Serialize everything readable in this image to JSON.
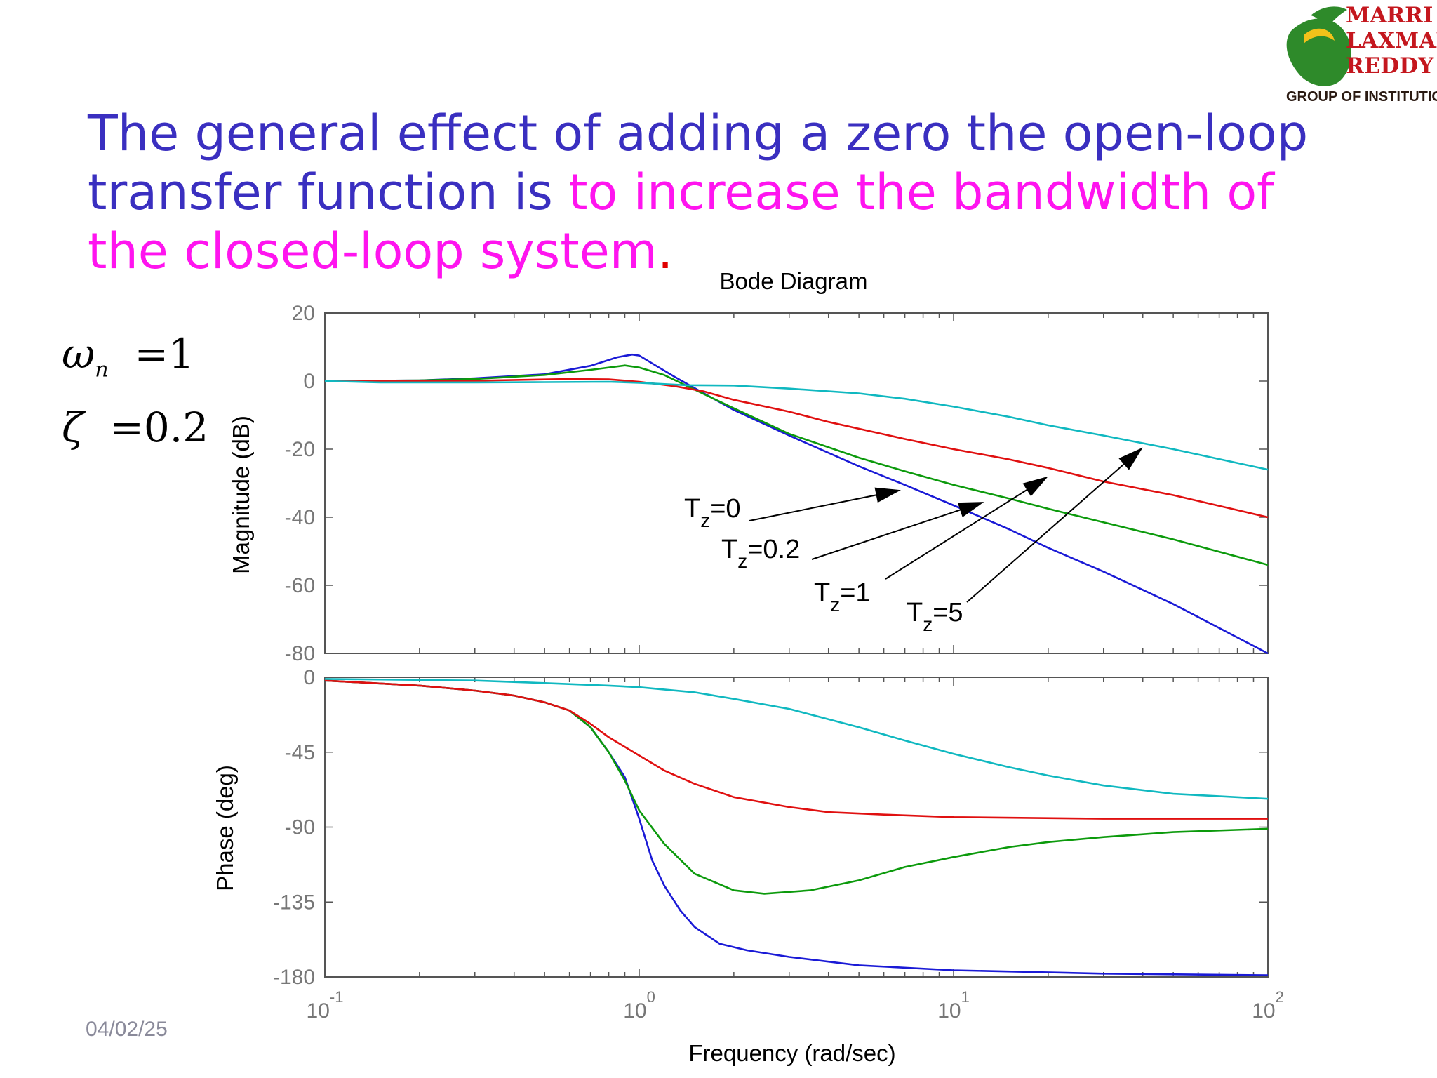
{
  "slide": {
    "title_part1": "The general effect of adding a zero the open-loop transfer function is ",
    "title_part2": "to increase the bandwidth of the closed-loop system",
    "title_end": ".",
    "date": "04/02/25",
    "params": {
      "wn_symbol": "ω",
      "wn_sub": "n",
      "wn_value": "=1",
      "zeta_symbol": "ζ",
      "zeta_value": "=0.2"
    },
    "logo": {
      "line1": "MARRI",
      "line2": "LAXMAN",
      "line3": "REDDY",
      "sub": "GROUP OF INSTITUTIONS"
    }
  },
  "chart_data": {
    "type": "line",
    "title": "Bode Diagram",
    "xlabel": "Frequency  (rad/sec)",
    "x_scale": "log",
    "xlim": [
      0.1,
      100
    ],
    "x_ticks": [
      {
        "base": "10",
        "exp": "-1"
      },
      {
        "base": "10",
        "exp": "0"
      },
      {
        "base": "10",
        "exp": "1"
      },
      {
        "base": "10",
        "exp": "2"
      }
    ],
    "colors": {
      "Tz=0": "#1a1ad6",
      "Tz=0.2": "#0c9a0c",
      "Tz=1": "#e01010",
      "Tz=5": "#10b8c0"
    },
    "magnitude": {
      "ylabel": "Magnitude (dB)",
      "ylim": [
        -80,
        20
      ],
      "yticks": [
        "20",
        "0",
        "-20",
        "-40",
        "-60",
        "-80"
      ],
      "series": [
        {
          "key": "Tz=0",
          "points": [
            [
              0.1,
              0
            ],
            [
              0.2,
              0.2
            ],
            [
              0.3,
              0.8
            ],
            [
              0.5,
              2
            ],
            [
              0.7,
              4.5
            ],
            [
              0.85,
              7
            ],
            [
              0.95,
              7.8
            ],
            [
              1.0,
              7.5
            ],
            [
              1.1,
              5.2
            ],
            [
              1.3,
              1.2
            ],
            [
              1.6,
              -3.5
            ],
            [
              2,
              -8.5
            ],
            [
              3,
              -16
            ],
            [
              5,
              -25
            ],
            [
              7,
              -30.5
            ],
            [
              10,
              -36.5
            ],
            [
              15,
              -43.5
            ],
            [
              20,
              -49
            ],
            [
              30,
              -56
            ],
            [
              50,
              -65.5
            ],
            [
              100,
              -80
            ]
          ]
        },
        {
          "key": "Tz=0.2",
          "points": [
            [
              0.1,
              0
            ],
            [
              0.2,
              0.2
            ],
            [
              0.3,
              0.6
            ],
            [
              0.5,
              1.8
            ],
            [
              0.7,
              3.3
            ],
            [
              0.9,
              4.6
            ],
            [
              1.0,
              4.0
            ],
            [
              1.2,
              1.8
            ],
            [
              1.5,
              -2.5
            ],
            [
              2,
              -8
            ],
            [
              3,
              -15.5
            ],
            [
              5,
              -22.5
            ],
            [
              7,
              -26.5
            ],
            [
              10,
              -30.5
            ],
            [
              15,
              -34.5
            ],
            [
              20,
              -37.5
            ],
            [
              30,
              -41.5
            ],
            [
              50,
              -46.5
            ],
            [
              100,
              -54
            ]
          ]
        },
        {
          "key": "Tz=1",
          "points": [
            [
              0.1,
              0
            ],
            [
              0.3,
              0.1
            ],
            [
              0.6,
              0.6
            ],
            [
              0.8,
              0.5
            ],
            [
              1,
              -0.2
            ],
            [
              1.3,
              -1.5
            ],
            [
              1.6,
              -3
            ],
            [
              2,
              -5.5
            ],
            [
              3,
              -9
            ],
            [
              4,
              -12
            ],
            [
              5,
              -14
            ],
            [
              7,
              -17
            ],
            [
              10,
              -20
            ],
            [
              15,
              -23
            ],
            [
              20,
              -25.5
            ],
            [
              30,
              -29.5
            ],
            [
              50,
              -33.5
            ],
            [
              100,
              -40
            ]
          ]
        },
        {
          "key": "Tz=5",
          "points": [
            [
              0.1,
              0
            ],
            [
              0.15,
              -0.4
            ],
            [
              0.3,
              -0.4
            ],
            [
              0.5,
              -0.3
            ],
            [
              0.8,
              -0.2
            ],
            [
              1,
              -0.5
            ],
            [
              1.4,
              -1.2
            ],
            [
              2,
              -1.3
            ],
            [
              3,
              -2.2
            ],
            [
              5,
              -3.6
            ],
            [
              7,
              -5.2
            ],
            [
              10,
              -7.5
            ],
            [
              15,
              -10.5
            ],
            [
              20,
              -13
            ],
            [
              30,
              -16
            ],
            [
              50,
              -20
            ],
            [
              100,
              -26
            ]
          ]
        }
      ]
    },
    "phase": {
      "ylabel": "Phase (deg)",
      "ylim": [
        -180,
        0
      ],
      "yticks": [
        "0",
        "-45",
        "-90",
        "-135",
        "-180"
      ],
      "series": [
        {
          "key": "Tz=0",
          "points": [
            [
              0.1,
              -2
            ],
            [
              0.2,
              -5
            ],
            [
              0.3,
              -8
            ],
            [
              0.4,
              -11
            ],
            [
              0.5,
              -15
            ],
            [
              0.6,
              -20
            ],
            [
              0.7,
              -30
            ],
            [
              0.8,
              -45
            ],
            [
              0.9,
              -60
            ],
            [
              1.0,
              -85
            ],
            [
              1.1,
              -110
            ],
            [
              1.2,
              -125
            ],
            [
              1.35,
              -140
            ],
            [
              1.5,
              -150
            ],
            [
              1.8,
              -160
            ],
            [
              2.2,
              -164
            ],
            [
              3,
              -168
            ],
            [
              5,
              -173
            ],
            [
              10,
              -176
            ],
            [
              30,
              -178
            ],
            [
              100,
              -179
            ]
          ]
        },
        {
          "key": "Tz=0.2",
          "points": [
            [
              0.1,
              -2
            ],
            [
              0.2,
              -5
            ],
            [
              0.3,
              -8
            ],
            [
              0.4,
              -11
            ],
            [
              0.5,
              -15
            ],
            [
              0.6,
              -20
            ],
            [
              0.7,
              -30
            ],
            [
              0.8,
              -45
            ],
            [
              0.9,
              -62
            ],
            [
              1.0,
              -80
            ],
            [
              1.2,
              -100
            ],
            [
              1.5,
              -118
            ],
            [
              2,
              -128
            ],
            [
              2.5,
              -130
            ],
            [
              3.5,
              -128
            ],
            [
              5,
              -122
            ],
            [
              7,
              -114
            ],
            [
              10,
              -108
            ],
            [
              15,
              -102
            ],
            [
              20,
              -99
            ],
            [
              30,
              -96
            ],
            [
              50,
              -93
            ],
            [
              100,
              -91
            ]
          ]
        },
        {
          "key": "Tz=1",
          "points": [
            [
              0.1,
              -2
            ],
            [
              0.2,
              -5
            ],
            [
              0.3,
              -8
            ],
            [
              0.4,
              -11
            ],
            [
              0.5,
              -15
            ],
            [
              0.6,
              -20
            ],
            [
              0.7,
              -28
            ],
            [
              0.8,
              -36
            ],
            [
              1.0,
              -47
            ],
            [
              1.2,
              -56
            ],
            [
              1.5,
              -64
            ],
            [
              2,
              -72
            ],
            [
              3,
              -78
            ],
            [
              4,
              -81
            ],
            [
              6,
              -82.5
            ],
            [
              10,
              -84
            ],
            [
              30,
              -85
            ],
            [
              100,
              -85
            ]
          ]
        },
        {
          "key": "Tz=5",
          "points": [
            [
              0.1,
              -1
            ],
            [
              0.3,
              -2
            ],
            [
              0.5,
              -3.5
            ],
            [
              0.8,
              -5
            ],
            [
              1,
              -6
            ],
            [
              1.5,
              -9
            ],
            [
              2,
              -13
            ],
            [
              3,
              -19
            ],
            [
              5,
              -30
            ],
            [
              7,
              -38
            ],
            [
              10,
              -46
            ],
            [
              15,
              -54
            ],
            [
              20,
              -59
            ],
            [
              30,
              -65
            ],
            [
              50,
              -70
            ],
            [
              100,
              -73
            ]
          ]
        }
      ]
    },
    "annotations": [
      {
        "key": "Tz=0",
        "base": "T",
        "sub": "z",
        "rest": "=0",
        "target_x": 6.8,
        "target_db": -32
      },
      {
        "key": "Tz=0.2",
        "base": "T",
        "sub": "z",
        "rest": "=0.2",
        "target_x": 12.5,
        "target_db": -35.5
      },
      {
        "key": "Tz=1",
        "base": "T",
        "sub": "z",
        "rest": "=1",
        "target_x": 20,
        "target_db": -28
      },
      {
        "key": "Tz=5",
        "base": "T",
        "sub": "z",
        "rest": "=5",
        "target_x": 40,
        "target_db": -19.5
      }
    ]
  }
}
